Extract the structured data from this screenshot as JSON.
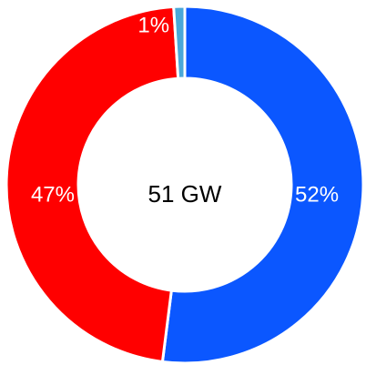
{
  "chart_data": {
    "type": "pie",
    "donut": true,
    "center_label": "51 GW",
    "slices": [
      {
        "label": "52%",
        "value": 52,
        "color": "#0b57ff"
      },
      {
        "label": "47%",
        "value": 47,
        "color": "#ff0000"
      },
      {
        "label": "1%",
        "value": 1,
        "color": "#4aa8d8"
      }
    ]
  }
}
